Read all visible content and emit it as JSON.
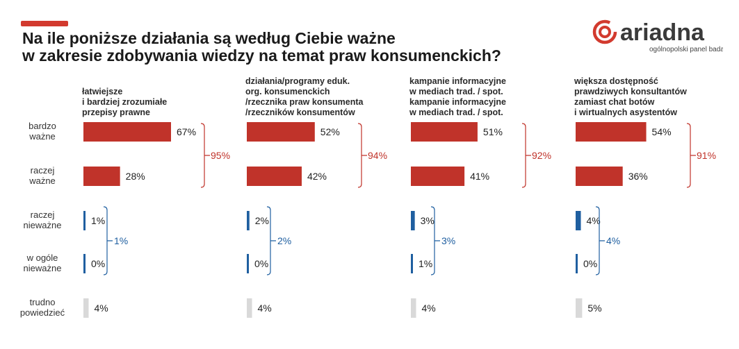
{
  "header": {
    "title_lines": [
      "Na ile poniższe działania są według Ciebie ważne",
      "w zakresie zdobywania wiedzy na temat praw konsumenckich?"
    ]
  },
  "logo": {
    "name": "ariadna",
    "tagline": "ogólnopolski panel badawczy"
  },
  "colors": {
    "important": "#c0332a",
    "unimportant": "#1f5fa0",
    "hard_to_say": "#d9d9d9",
    "accent": "#d23a2e"
  },
  "chart_data": {
    "type": "bar",
    "orientation": "horizontal",
    "categories": [
      [
        "bardzo",
        "ważne"
      ],
      [
        "raczej",
        "ważne"
      ],
      [
        "raczej",
        "nieważne"
      ],
      [
        "w ogóle",
        "nieważne"
      ],
      [
        "trudno",
        "powiedzieć"
      ]
    ],
    "panels": [
      {
        "heading": [
          "łatwiejsze",
          "i bardziej zrozumiałe",
          "przepisy prawne"
        ],
        "values": [
          67,
          28,
          1,
          0,
          4
        ],
        "value_labels": [
          "67%",
          "28%",
          "1%",
          "0%",
          "4%"
        ],
        "important_total": "95%",
        "unimportant_total": "1%"
      },
      {
        "heading": [
          "działania/programy eduk.",
          "org. konsumenckich",
          "/rzecznika praw konsumenta",
          "/rzeczników konsumentów"
        ],
        "values": [
          52,
          42,
          2,
          0,
          4
        ],
        "value_labels": [
          "52%",
          "42%",
          "2%",
          "0%",
          "4%"
        ],
        "important_total": "94%",
        "unimportant_total": "2%"
      },
      {
        "heading": [
          "kampanie informacyjne",
          "w mediach trad. / spot.",
          "kampanie informacyjne",
          "w mediach trad. / spot."
        ],
        "values": [
          51,
          41,
          3,
          1,
          4
        ],
        "value_labels": [
          "51%",
          "41%",
          "3%",
          "1%",
          "4%"
        ],
        "important_total": "92%",
        "unimportant_total": "3%"
      },
      {
        "heading": [
          "większa dostępność",
          "prawdziwych konsultantów",
          "zamiast chat botów",
          "i wirtualnych asystentów"
        ],
        "values": [
          54,
          36,
          4,
          0,
          5
        ],
        "value_labels": [
          "54%",
          "36%",
          "4%",
          "0%",
          "5%"
        ],
        "important_total": "91%",
        "unimportant_total": "4%"
      }
    ]
  }
}
